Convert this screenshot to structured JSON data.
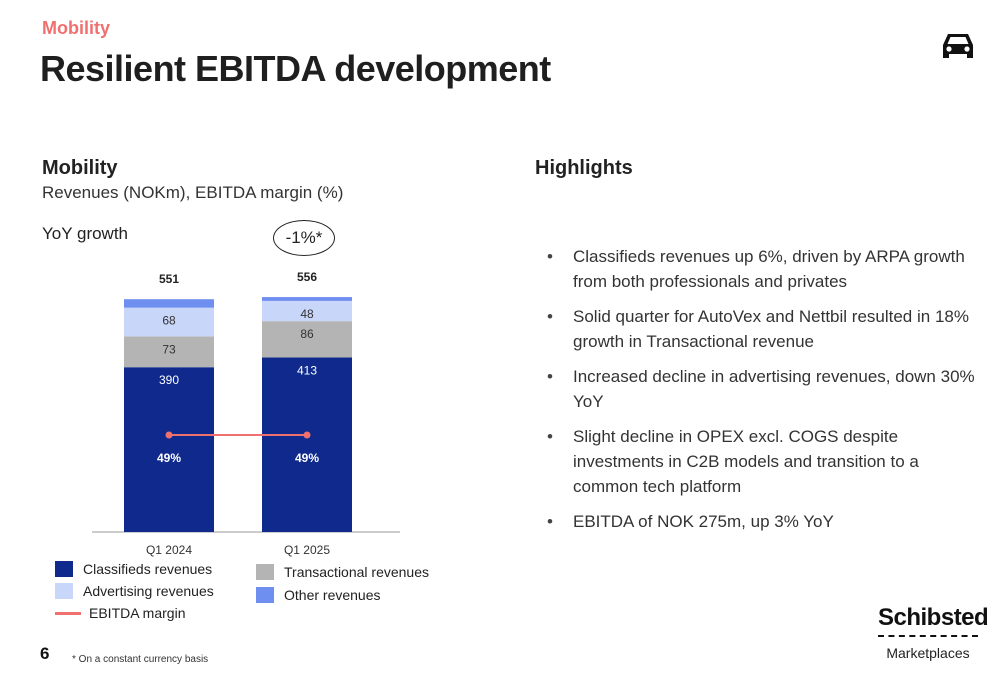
{
  "header": {
    "section": "Mobility",
    "title": "Resilient EBITDA development",
    "icon": "car-icon"
  },
  "chart_panel": {
    "title": "Mobility",
    "subtitle": "Revenues (NOKm), EBITDA margin (%)",
    "yoy_label": "YoY growth",
    "yoy_value": "-1%*"
  },
  "chart_data": {
    "type": "bar",
    "stacked": true,
    "categories": [
      "Q1 2024",
      "Q1 2025"
    ],
    "totals": [
      "551",
      "556"
    ],
    "series": [
      {
        "name": "Classifieds revenues",
        "values": [
          390,
          413
        ],
        "labels": [
          "390",
          "413"
        ],
        "color": "#0f2a8c"
      },
      {
        "name": "Transactional revenues",
        "values": [
          73,
          86
        ],
        "labels": [
          "73",
          "86"
        ],
        "color": "#b4b4b4"
      },
      {
        "name": "Advertising revenues",
        "values": [
          68,
          48
        ],
        "labels": [
          "68",
          "48"
        ],
        "color": "#c8d6fa"
      },
      {
        "name": "Other revenues",
        "values": [
          20,
          9
        ],
        "labels": [],
        "color": "#6e8ef0"
      }
    ],
    "line": {
      "name": "EBITDA margin",
      "values": [
        49,
        49
      ],
      "labels": [
        "49%",
        "49%"
      ],
      "color": "#f07070"
    }
  },
  "legend": [
    {
      "label": "Classifieds revenues",
      "color": "#0f2a8c",
      "kind": "box"
    },
    {
      "label": "Advertising revenues",
      "color": "#c8d6fa",
      "kind": "box"
    },
    {
      "label": "EBITDA margin",
      "color": "#f07070",
      "kind": "line"
    },
    {
      "label": "Transactional revenues",
      "color": "#b4b4b4",
      "kind": "box"
    },
    {
      "label": "Other revenues",
      "color": "#6e8ef0",
      "kind": "box"
    }
  ],
  "highlights": {
    "title": "Highlights",
    "items": [
      "Classifieds revenues up 6%, driven by ARPA growth from both professionals and privates",
      "Solid quarter for AutoVex and Nettbil resulted in 18% growth in Transactional revenue",
      "Increased decline in advertising revenues, down 30% YoY",
      "Slight decline in OPEX excl. COGS despite investments in C2B models and transition to a common tech platform",
      "EBITDA of NOK 275m, up 3% YoY"
    ]
  },
  "footer": {
    "page": "6",
    "footnote": "* On a constant currency basis",
    "logo_name": "Schibsted",
    "logo_sub": "Marketplaces"
  }
}
